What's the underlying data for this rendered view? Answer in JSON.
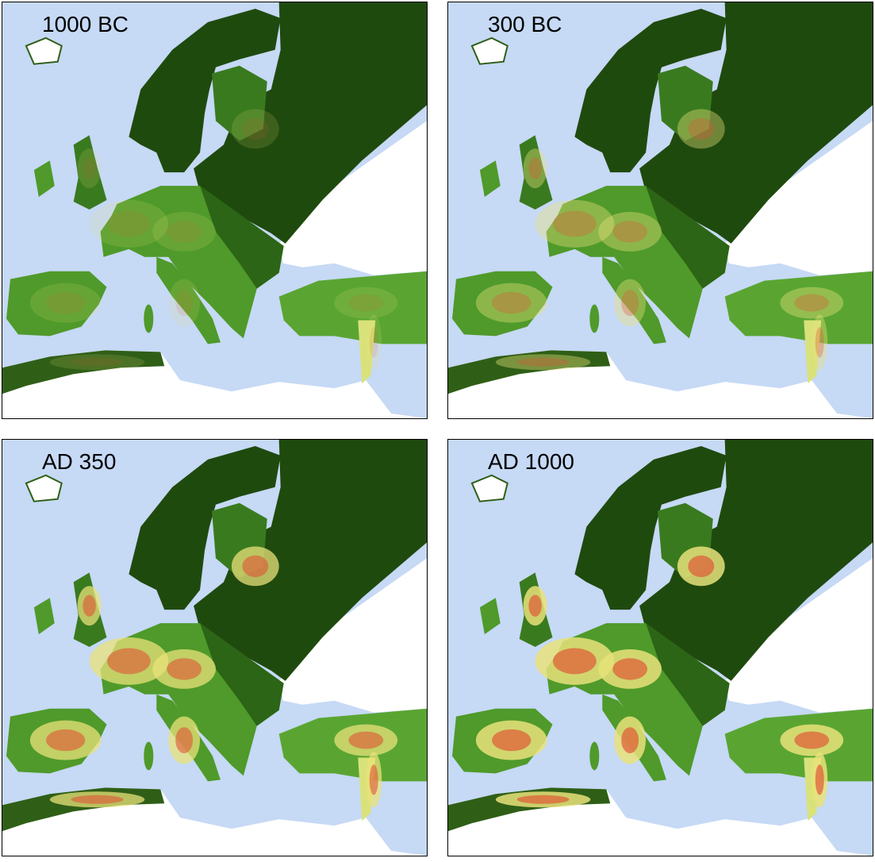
{
  "panels": [
    {
      "label": "1000 BC"
    },
    {
      "label": "300 BC"
    },
    {
      "label": "AD 350"
    },
    {
      "label": "AD 1000"
    }
  ]
}
